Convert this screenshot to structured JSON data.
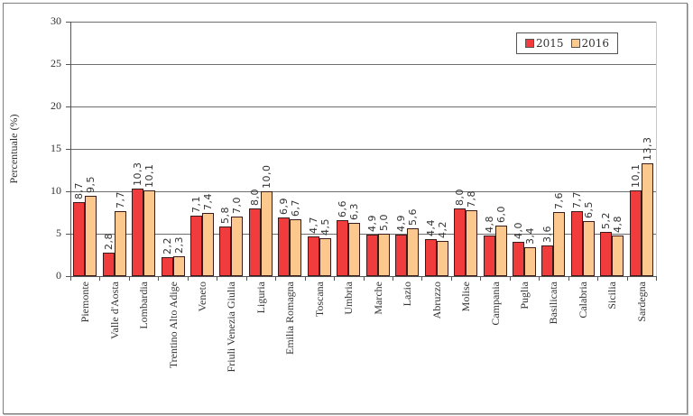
{
  "chart_data": {
    "type": "bar",
    "title": "",
    "xlabel": "",
    "ylabel": "Percentuale (%)",
    "ylim": [
      0,
      30
    ],
    "yticks": [
      0,
      5,
      10,
      15,
      20,
      25,
      30
    ],
    "grid": true,
    "legend_position": "top-right",
    "categories": [
      "Piemonte",
      "Valle d'Aosta",
      "Lombardia",
      "Trentino Alto Adige",
      "Veneto",
      "Friuli Venezia Giulia",
      "Liguria",
      "Emilia Romagna",
      "Toscana",
      "Umbria",
      "Marche",
      "Lazio",
      "Abruzzo",
      "Molise",
      "Campania",
      "Puglia",
      "Basilicata",
      "Calabria",
      "Sicilia",
      "Sardegna"
    ],
    "series": [
      {
        "name": "2015",
        "color": "#f03c3c",
        "values": [
          8.7,
          2.8,
          10.3,
          2.2,
          7.1,
          5.8,
          8.0,
          6.9,
          4.7,
          6.6,
          4.9,
          4.9,
          4.4,
          8.0,
          4.8,
          4.0,
          3.6,
          7.7,
          5.2,
          10.1
        ]
      },
      {
        "name": "2016",
        "color": "#fcc88e",
        "values": [
          9.5,
          7.7,
          10.1,
          2.3,
          7.4,
          7.0,
          10.0,
          6.7,
          4.5,
          6.3,
          5.0,
          5.6,
          4.2,
          7.8,
          6.0,
          3.4,
          7.6,
          6.5,
          4.8,
          13.3
        ]
      }
    ],
    "value_labels": {
      "2015": [
        "8,7",
        "2,8",
        "10,3",
        "2,2",
        "7,1",
        "5,8",
        "8,0",
        "6,9",
        "4,7",
        "6,6",
        "4,9",
        "4,9",
        "4,4",
        "8,0",
        "4,8",
        "4,0",
        "3,6",
        "7,7",
        "5,2",
        "10,1"
      ],
      "2016": [
        "9,5",
        "7,7",
        "10,1",
        "2,3",
        "7,4",
        "7,0",
        "10,0",
        "6,7",
        "4,5",
        "6,3",
        "5,0",
        "5,6",
        "4,2",
        "7,8",
        "6,0",
        "3,4",
        "7,6",
        "6,5",
        "4,8",
        "13,3"
      ]
    }
  },
  "legend": {
    "items": [
      {
        "label": "2015",
        "color": "#f03c3c"
      },
      {
        "label": "2016",
        "color": "#fcc88e"
      }
    ]
  }
}
